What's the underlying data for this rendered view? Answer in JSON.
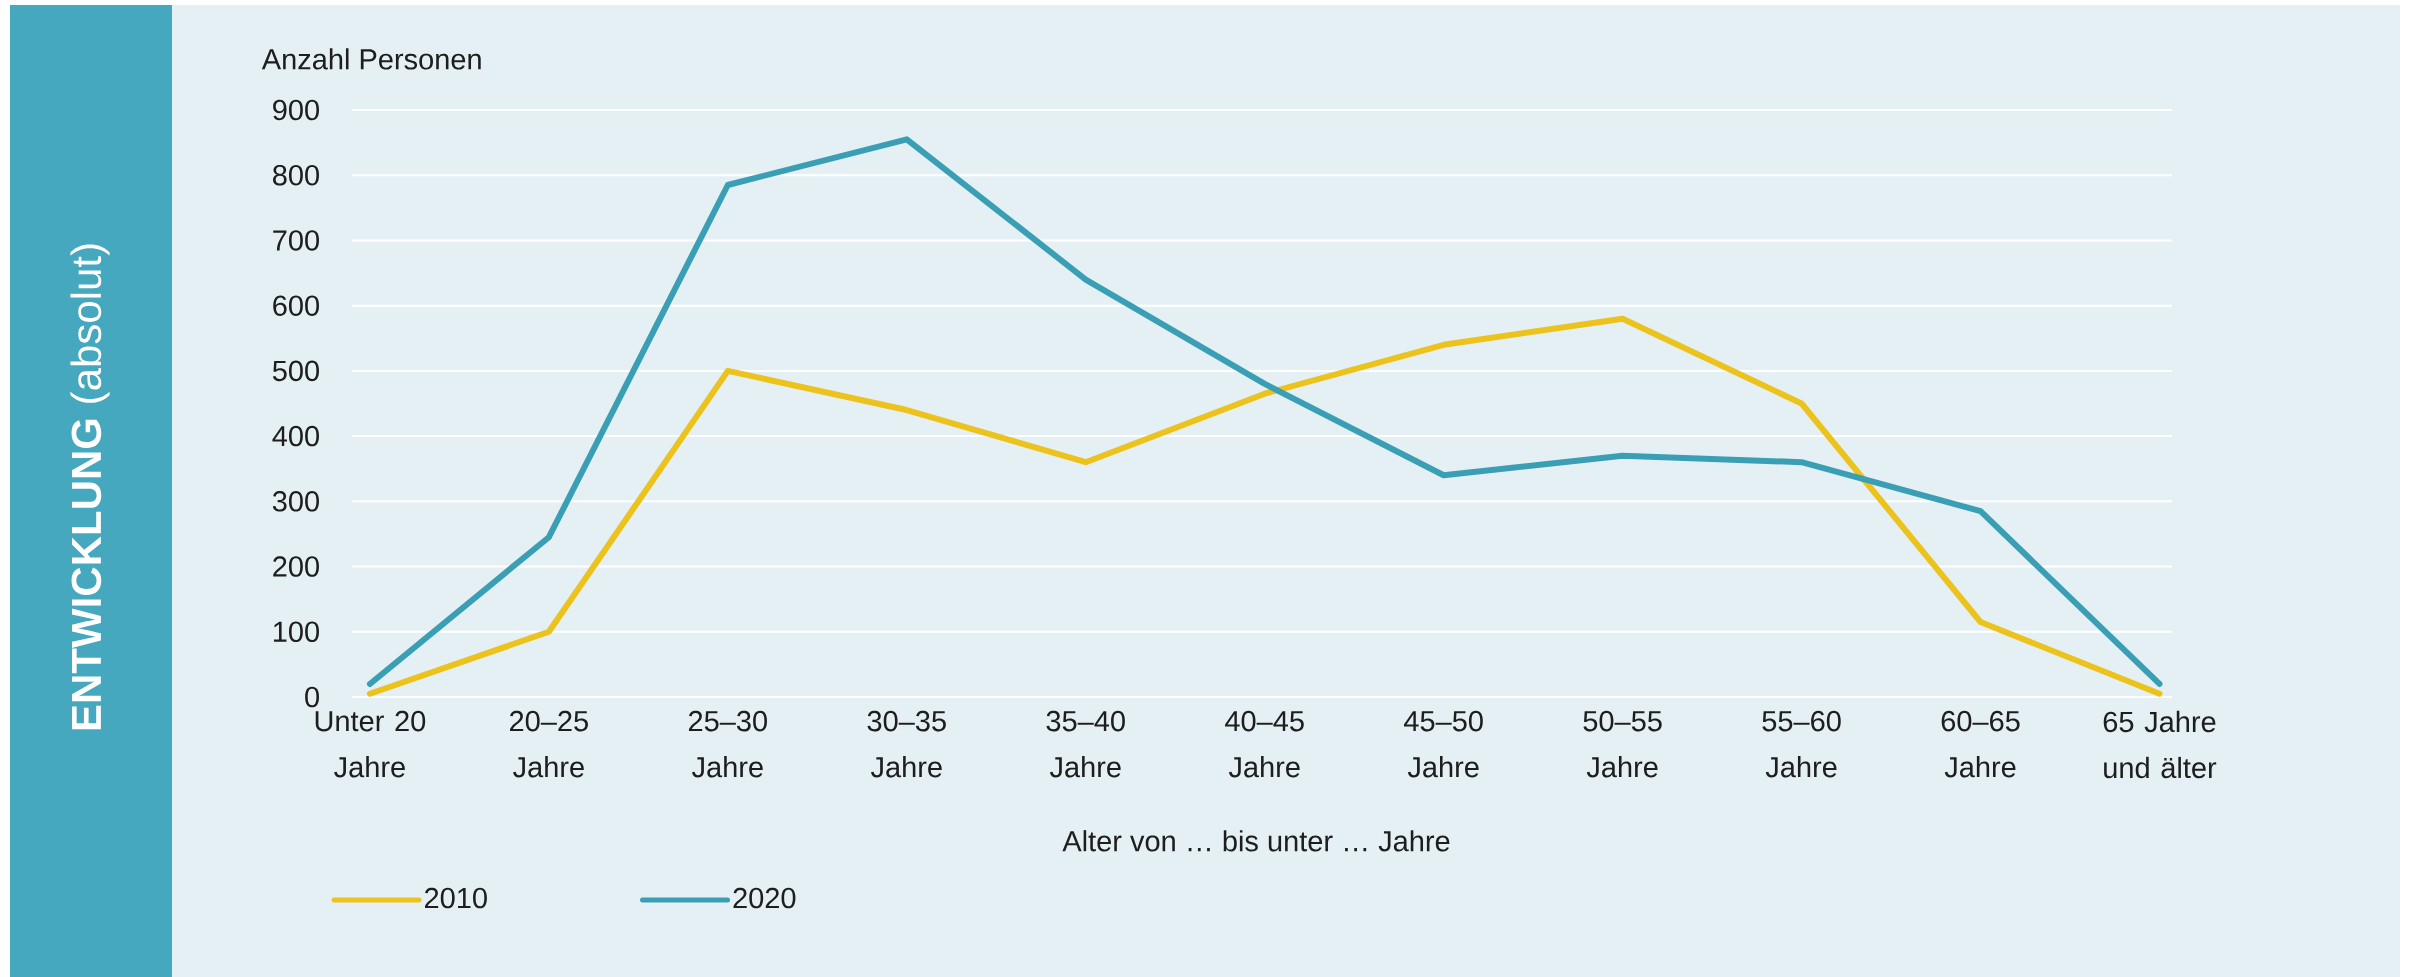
{
  "chart_data": {
    "type": "line",
    "title": "**ENTWICKLUNG** (absolut)",
    "ylabel": "Anzahl Personen",
    "xlabel": "Alter von … bis unter … Jahre",
    "categories": [
      "Unter 20 Jahre",
      "20–25 Jahre",
      "25–30 Jahre",
      "30–35 Jahre",
      "35–40 Jahre",
      "40–45 Jahre",
      "45–50 Jahre",
      "50–55 Jahre",
      "55–60 Jahre",
      "60–65 Jahre",
      "65 Jahre und älter"
    ],
    "series": [
      {
        "name": "2010",
        "color": "#ecc21c",
        "values": [
          5,
          100,
          500,
          440,
          360,
          465,
          540,
          580,
          450,
          115,
          5
        ]
      },
      {
        "name": "2020",
        "color": "#3a9fb5",
        "values": [
          20,
          245,
          785,
          855,
          640,
          480,
          340,
          370,
          360,
          285,
          20
        ]
      }
    ],
    "ylim": [
      0,
      900
    ],
    "yticks": [
      0,
      100,
      200,
      300,
      400,
      500,
      600,
      700,
      800,
      900
    ],
    "grid": "y",
    "legend": "bottom left",
    "marker": "none",
    "line_style": "solid"
  }
}
